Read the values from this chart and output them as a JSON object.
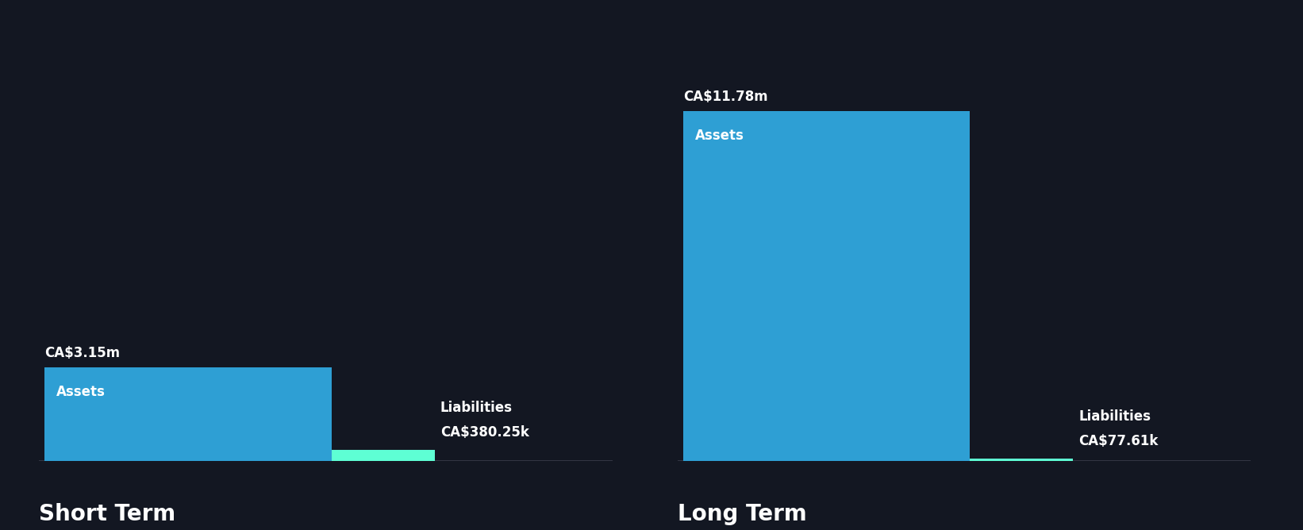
{
  "background_color": "#131722",
  "panels": [
    {
      "title": "Short Term",
      "assets_value": 3.15,
      "assets_label": "CA$3.15m",
      "liabilities_value": 0.38025,
      "liabilities_label": "CA$380.25k",
      "assets_color": "#2E9FD4",
      "liabilities_color": "#5EFFD4",
      "bar_label_assets": "Assets",
      "bar_label_liabilities": "Liabilities"
    },
    {
      "title": "Long Term",
      "assets_value": 11.78,
      "assets_label": "CA$11.78m",
      "liabilities_value": 0.07761,
      "liabilities_label": "CA$77.61k",
      "assets_color": "#2E9FD4",
      "liabilities_color": "#5EFFD4",
      "bar_label_assets": "Assets",
      "bar_label_liabilities": "Liabilities"
    }
  ],
  "global_max": 11.78,
  "title_fontsize": 20,
  "label_fontsize": 12,
  "value_fontsize": 12,
  "bar_text_fontsize": 12,
  "text_color": "#ffffff",
  "title_color": "#ffffff",
  "divider_color": "#2a2d3a",
  "baseline_color": "#3a3d4a"
}
